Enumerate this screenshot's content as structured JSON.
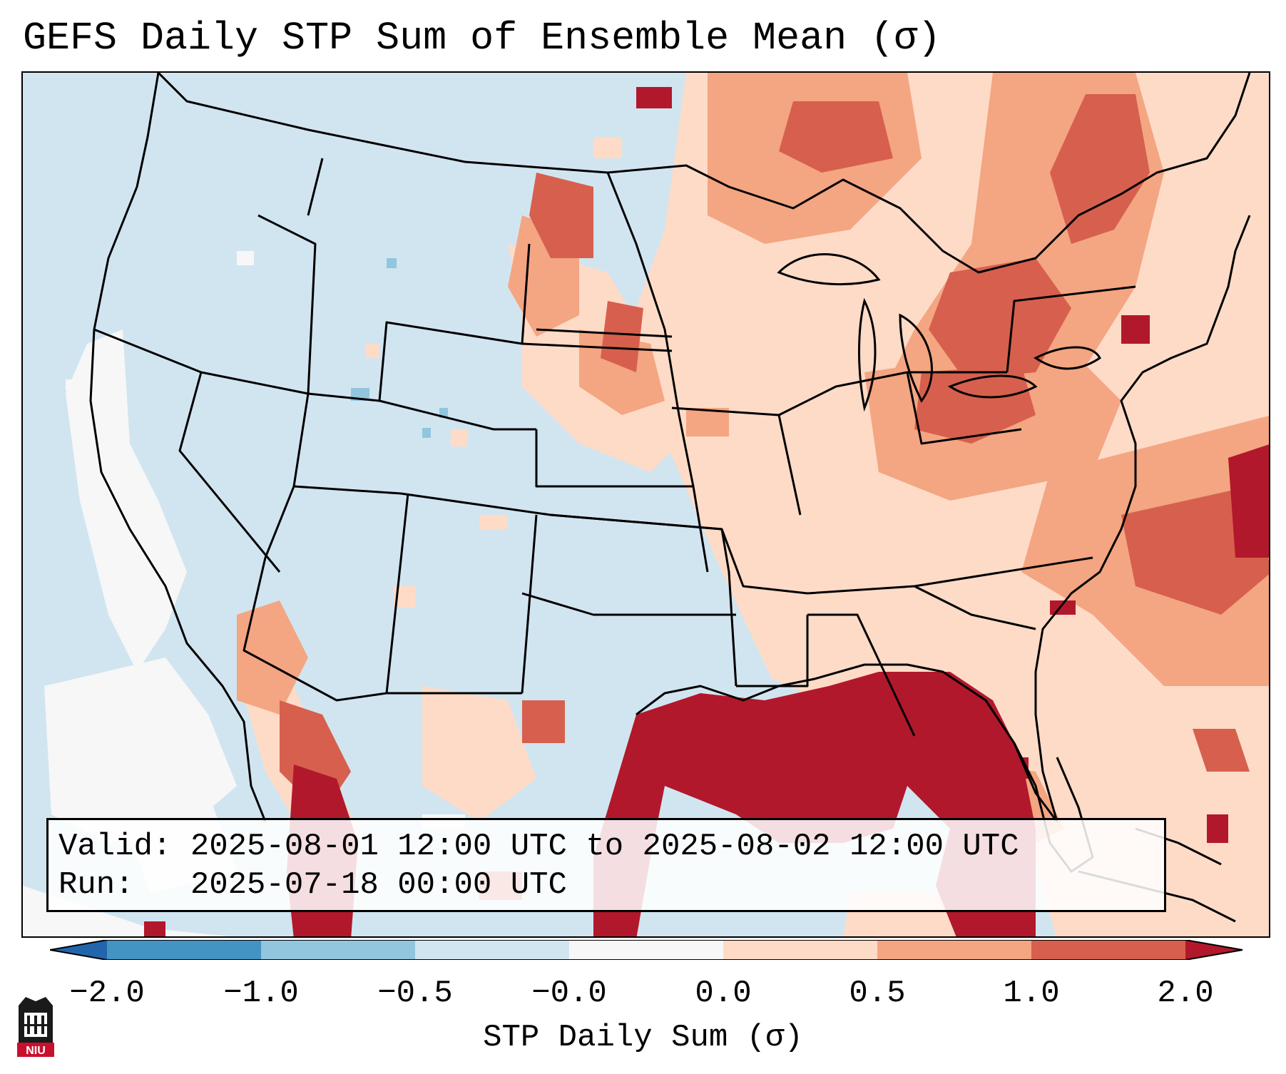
{
  "figure": {
    "title": "GEFS Daily STP Sum of Ensemble Mean (σ)",
    "valid_line": "Valid: 2025-08-01 12:00 UTC to 2025-08-02 12:00 UTC",
    "run_line": "Run:   2025-07-18 00:00 UTC",
    "logo_text": "NIU"
  },
  "colorbar": {
    "label": "STP Daily Sum (σ)",
    "ticks": [
      "−2.0",
      "−1.0",
      "−0.5",
      "−0.0",
      "0.0",
      "0.5",
      "1.0",
      "2.0"
    ],
    "bins": [
      {
        "low": -2.0,
        "high": -1.0,
        "color": "#4393c3"
      },
      {
        "low": -1.0,
        "high": -0.5,
        "color": "#92c5de"
      },
      {
        "low": -0.5,
        "high": 0.0,
        "color": "#d1e5f0"
      },
      {
        "low": 0.0,
        "high": 0.0,
        "color": "#f7f7f7"
      },
      {
        "low": 0.0,
        "high": 0.5,
        "color": "#fddbc7"
      },
      {
        "low": 0.5,
        "high": 1.0,
        "color": "#f4a582"
      },
      {
        "low": 1.0,
        "high": 2.0,
        "color": "#d6604d"
      }
    ],
    "under_color": "#2166ac",
    "over_color": "#b2182b"
  },
  "map": {
    "projection": "Lambert conformal, CONUS",
    "background_value_color": "#d1e5f0",
    "neutral_color": "#f7f7f7",
    "positive_light": "#fddbc7",
    "positive_mid": "#f4a582",
    "positive_strong": "#d6604d",
    "extreme_color": "#b2182b",
    "negative_light": "#92c5de"
  }
}
